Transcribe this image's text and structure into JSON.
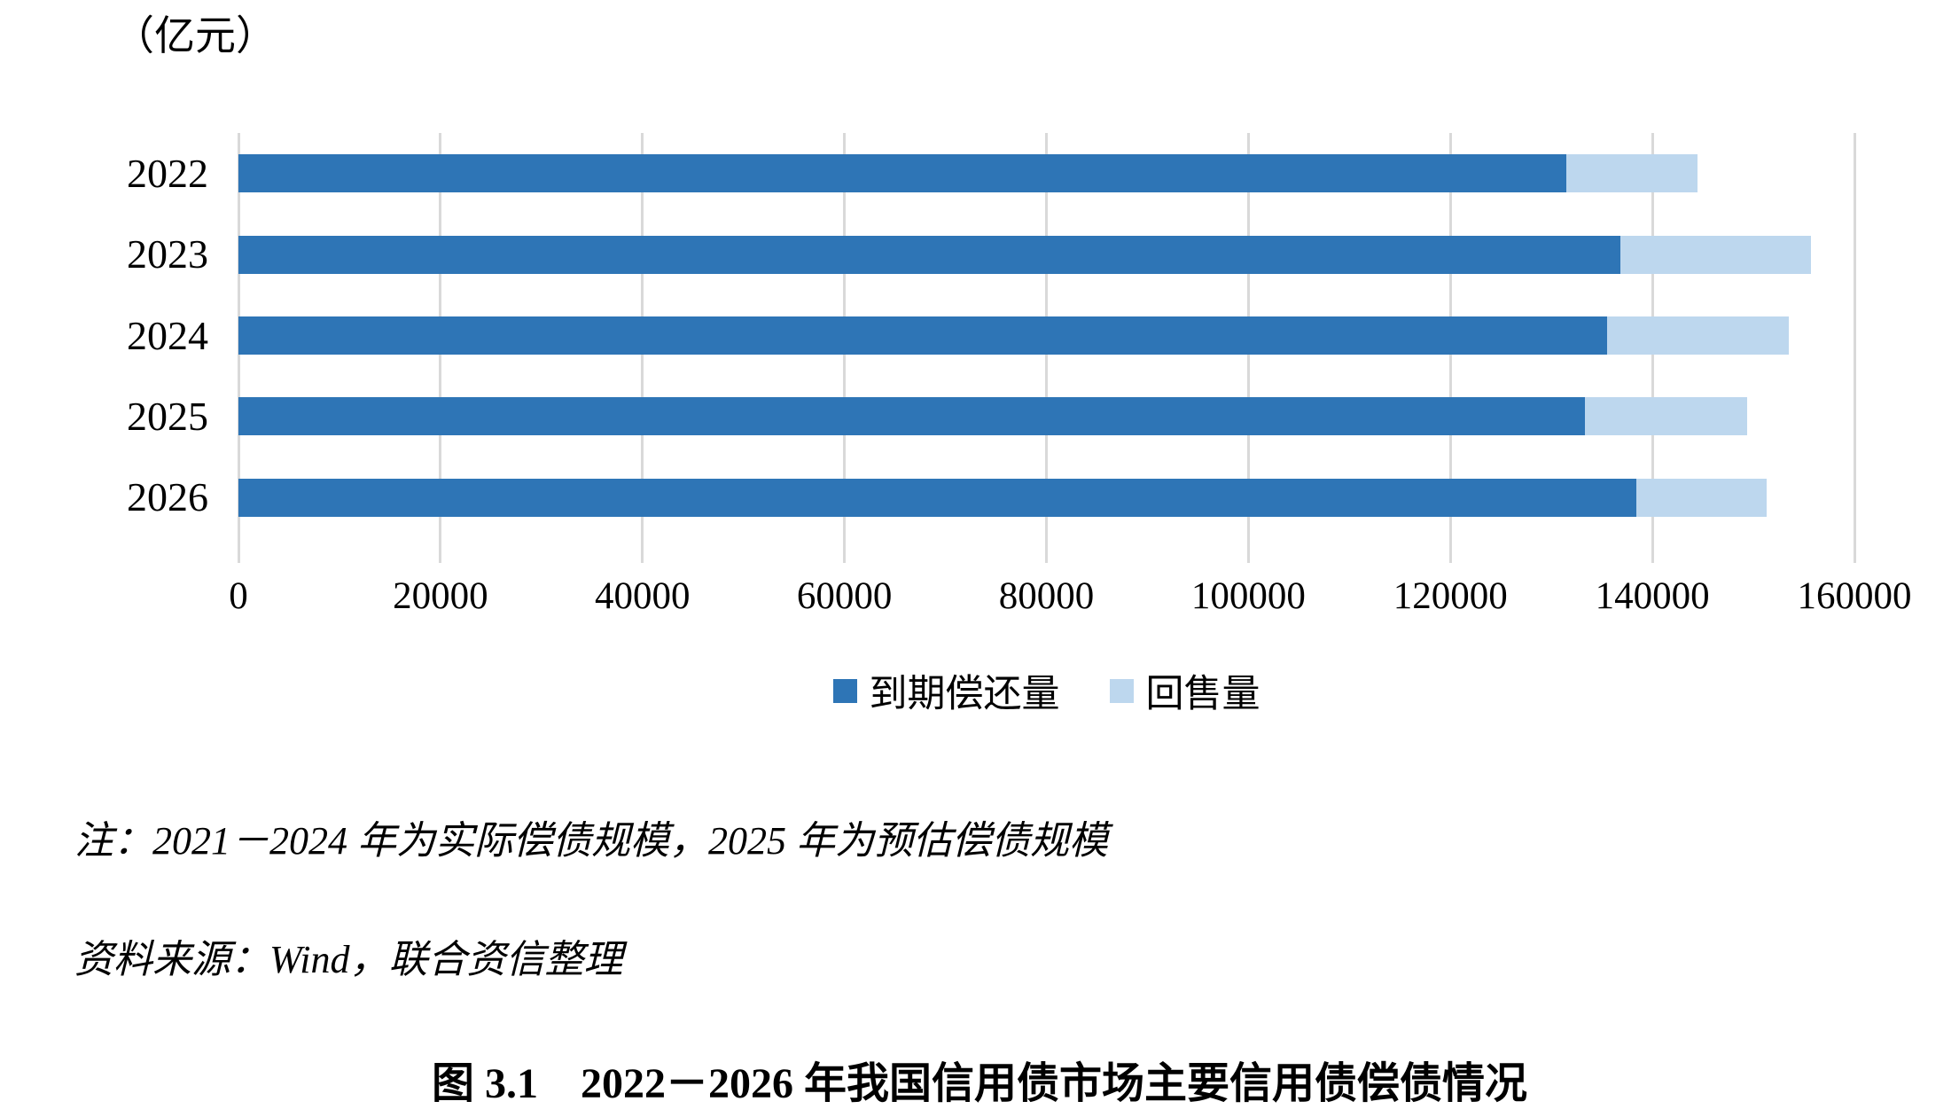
{
  "chart": {
    "unit_label": "（亿元）",
    "note": "注：2021－2024 年为实际偿债规模，2025 年为预估偿债规模",
    "source": "资料来源：Wind，联合资信整理",
    "caption": "图 3.1　2022－2026 年我国信用债市场主要信用债偿债情况"
  },
  "chart_data": {
    "type": "bar",
    "orientation": "horizontal",
    "stacked": true,
    "title": "（亿元）",
    "categories": [
      "2022",
      "2023",
      "2024",
      "2025",
      "2026"
    ],
    "series": [
      {
        "name": "到期偿还量",
        "color": "#2E75B6",
        "values": [
          131500,
          136800,
          135500,
          133300,
          138400
        ]
      },
      {
        "name": "回售量",
        "color": "#BDD7EE",
        "values": [
          13000,
          18900,
          18000,
          16100,
          12900
        ]
      }
    ],
    "totals": [
      144500,
      155700,
      153500,
      149400,
      151300
    ],
    "xlim": [
      0,
      160000
    ],
    "x_ticks": [
      0,
      20000,
      40000,
      60000,
      80000,
      100000,
      120000,
      140000,
      160000
    ],
    "grid": true,
    "gridline_color": "#D9D9D9",
    "legend_position": "bottom"
  }
}
